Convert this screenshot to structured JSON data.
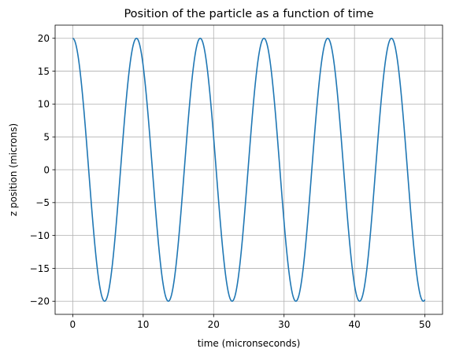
{
  "chart_data": {
    "type": "line",
    "title": "Position of the particle as a function of time",
    "xlabel": "time (micronseconds)",
    "ylabel": "z position (microns)",
    "xlim": [
      -2.5,
      52.5
    ],
    "ylim": [
      -22,
      22
    ],
    "xticks": [
      0,
      10,
      20,
      30,
      40,
      50
    ],
    "yticks": [
      20,
      15,
      10,
      5,
      0,
      -5,
      -10,
      -15,
      -20
    ],
    "ytick_labels": [
      "20",
      "15",
      "10",
      "5",
      "0",
      "−5",
      "−10",
      "−15",
      "−20"
    ],
    "grid": true,
    "series": [
      {
        "function": "z = 20*cos(2*pi*t/9.05)",
        "amplitude": 20,
        "period": 9.05,
        "t_start": 0,
        "t_end": 50,
        "color": "#1f77b4"
      }
    ]
  }
}
